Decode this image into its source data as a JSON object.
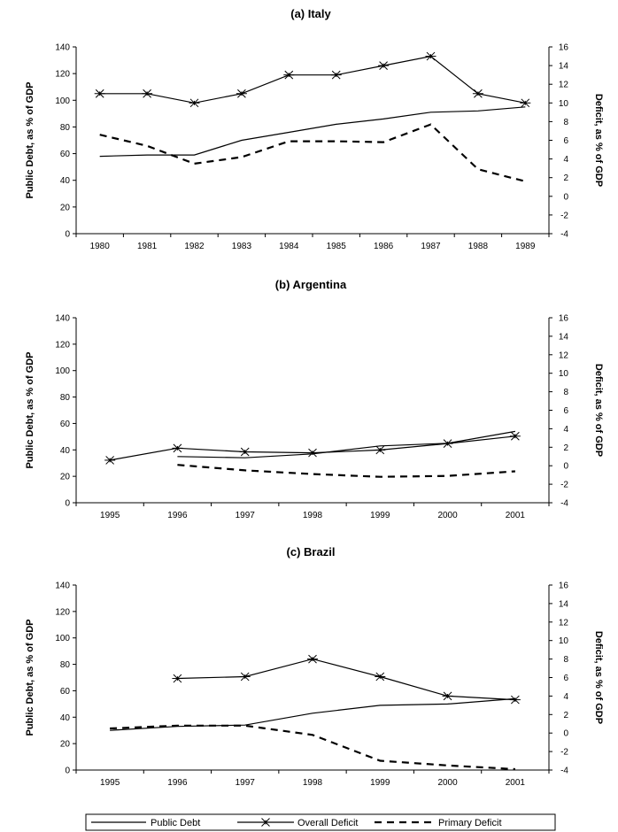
{
  "chart_data": [
    {
      "type": "line",
      "title": "(a) Italy",
      "ylabel": "Public Debt, as % of GDP",
      "y2label": "Deficit, as % of GDP",
      "categories": [
        "1980",
        "1981",
        "1982",
        "1983",
        "1984",
        "1985",
        "1986",
        "1987",
        "1988",
        "1989"
      ],
      "ylim": [
        0,
        140
      ],
      "y_ticks": [
        "0",
        "20",
        "40",
        "60",
        "80",
        "100",
        "120",
        "140"
      ],
      "y2lim": [
        -4,
        16
      ],
      "y2_ticks": [
        "-4",
        "-2",
        "0",
        "2",
        "4",
        "6",
        "8",
        "10",
        "12",
        "14",
        "16"
      ],
      "series": [
        {
          "name": "Public Debt",
          "axis": "left",
          "values": [
            58,
            59,
            59,
            70,
            76,
            82,
            86,
            91,
            92,
            95
          ]
        },
        {
          "name": "Overall Deficit",
          "axis": "right",
          "values": [
            11,
            11,
            10,
            11,
            13,
            13,
            14,
            15,
            11,
            10
          ]
        },
        {
          "name": "Primary Deficit",
          "axis": "right",
          "values": [
            6.6,
            5.4,
            3.5,
            4.2,
            5.9,
            5.9,
            5.8,
            7.7,
            2.9,
            1.6
          ]
        }
      ]
    },
    {
      "type": "line",
      "title": "(b) Argentina",
      "ylabel": "Public Debt, as % of GDP",
      "y2label": "Deficit, as % of GDP",
      "categories": [
        "1995",
        "1996",
        "1997",
        "1998",
        "1999",
        "2000",
        "2001"
      ],
      "ylim": [
        0,
        140
      ],
      "y_ticks": [
        "0",
        "20",
        "40",
        "60",
        "80",
        "100",
        "120",
        "140"
      ],
      "y2lim": [
        -4,
        16
      ],
      "y2_ticks": [
        "-4",
        "-2",
        "0",
        "2",
        "4",
        "6",
        "8",
        "10",
        "12",
        "14",
        "16"
      ],
      "series": [
        {
          "name": "Public Debt",
          "axis": "left",
          "values": [
            null,
            35,
            34,
            37,
            43,
            45,
            54
          ]
        },
        {
          "name": "Overall Deficit",
          "axis": "right",
          "values": [
            0.6,
            1.9,
            1.5,
            1.4,
            1.7,
            2.4,
            3.2
          ]
        },
        {
          "name": "Primary Deficit",
          "axis": "right",
          "values": [
            null,
            0.1,
            -0.5,
            -0.9,
            -1.2,
            -1.1,
            -0.6
          ]
        }
      ]
    },
    {
      "type": "line",
      "title": "(c) Brazil",
      "ylabel": "Public Debt, as % of GDP",
      "y2label": "Deficit, as % of GDP",
      "categories": [
        "1995",
        "1996",
        "1997",
        "1998",
        "1999",
        "2000",
        "2001"
      ],
      "ylim": [
        0,
        140
      ],
      "y_ticks": [
        "0",
        "20",
        "40",
        "60",
        "80",
        "100",
        "120",
        "140"
      ],
      "y2lim": [
        -4,
        16
      ],
      "y2_ticks": [
        "-4",
        "-2",
        "0",
        "2",
        "4",
        "6",
        "8",
        "10",
        "12",
        "14",
        "16"
      ],
      "series": [
        {
          "name": "Public Debt",
          "axis": "left",
          "values": [
            30,
            33,
            34,
            43,
            49,
            50,
            54
          ]
        },
        {
          "name": "Overall Deficit",
          "axis": "right",
          "values": [
            null,
            5.9,
            6.1,
            8.0,
            6.1,
            4.0,
            3.6
          ]
        },
        {
          "name": "Primary Deficit",
          "axis": "right",
          "values": [
            0.5,
            0.8,
            0.8,
            -0.2,
            -3.0,
            -3.5,
            -3.9
          ]
        }
      ]
    }
  ],
  "legend": [
    {
      "label": "Public Debt",
      "style": "solid"
    },
    {
      "label": "Overall Deficit",
      "style": "star"
    },
    {
      "label": "Primary Deficit",
      "style": "dashed"
    }
  ]
}
